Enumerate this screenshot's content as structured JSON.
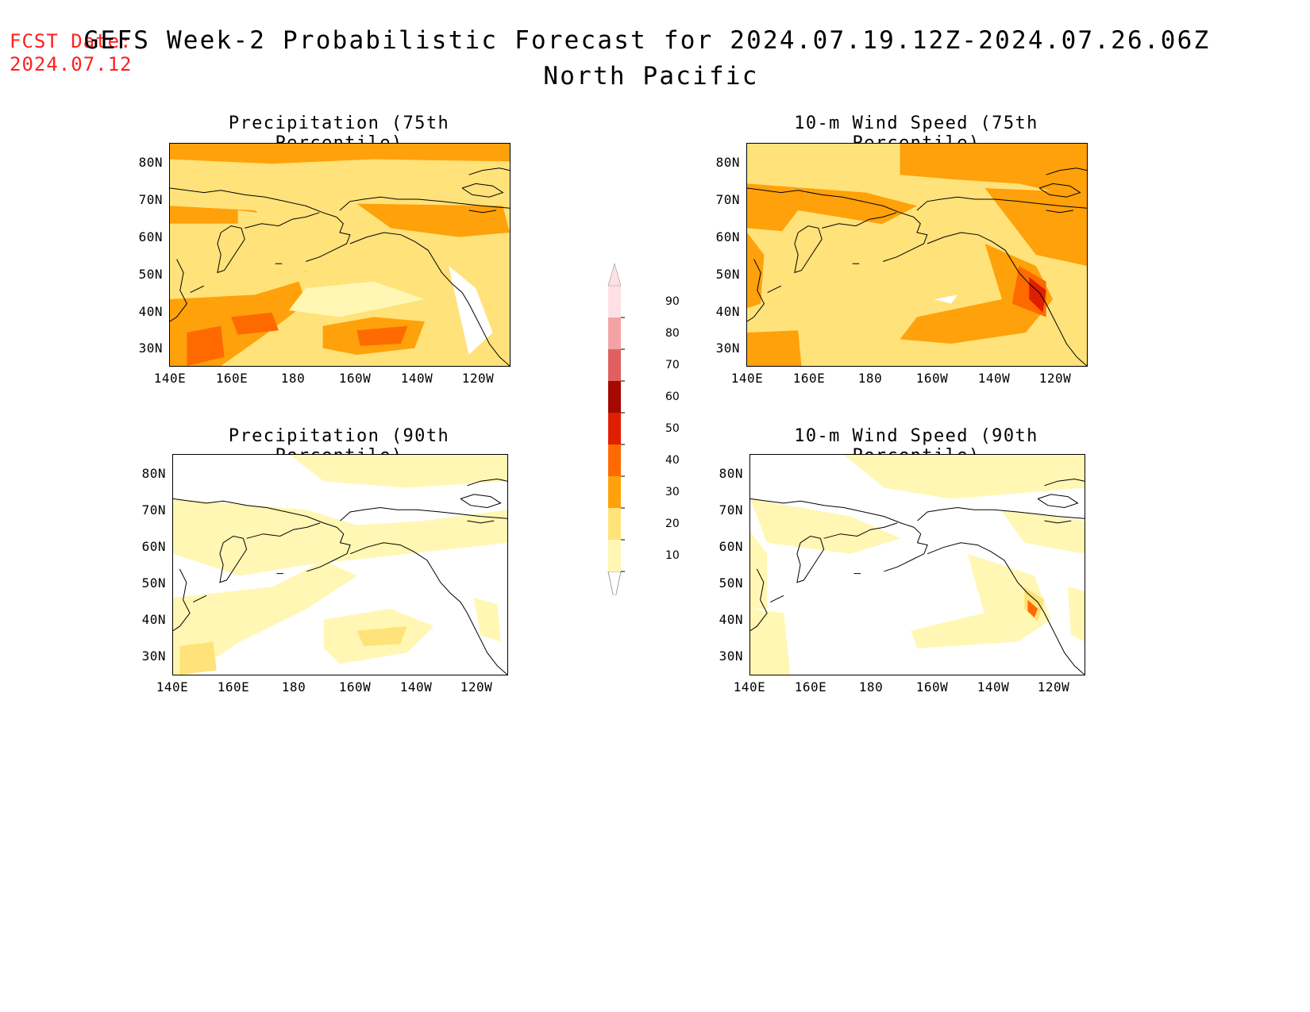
{
  "header": {
    "fcst_label": "FCST Date:",
    "fcst_date": "2024.07.12",
    "title": "GEFS Week-2 Probabilistic Forecast for 2024.07.19.12Z-2024.07.26.06Z",
    "subtitle": "North Pacific"
  },
  "axes": {
    "x_ticks": [
      "140E",
      "160E",
      "180",
      "160W",
      "140W",
      "120W"
    ],
    "y_ticks": [
      "80N",
      "70N",
      "60N",
      "50N",
      "40N",
      "30N"
    ]
  },
  "panels": [
    {
      "title": "Precipitation (75th Percentile)",
      "variable": "precipitation",
      "percentile": 75
    },
    {
      "title": "10-m Wind Speed (75th Percentile)",
      "variable": "wind",
      "percentile": 75
    },
    {
      "title": "Precipitation (90th Percentile)",
      "variable": "precipitation",
      "percentile": 90
    },
    {
      "title": "10-m Wind Speed (90th Percentile)",
      "variable": "wind",
      "percentile": 90
    }
  ],
  "colorbar": {
    "levels": [
      "10",
      "20",
      "30",
      "40",
      "50",
      "60",
      "70",
      "80",
      "90"
    ],
    "colors": [
      "#fff7b3",
      "#ffe27a",
      "#ffa10a",
      "#ff6a00",
      "#e01f00",
      "#a50800",
      "#e06060",
      "#f3a3a3",
      "#ffe0e4"
    ]
  }
}
